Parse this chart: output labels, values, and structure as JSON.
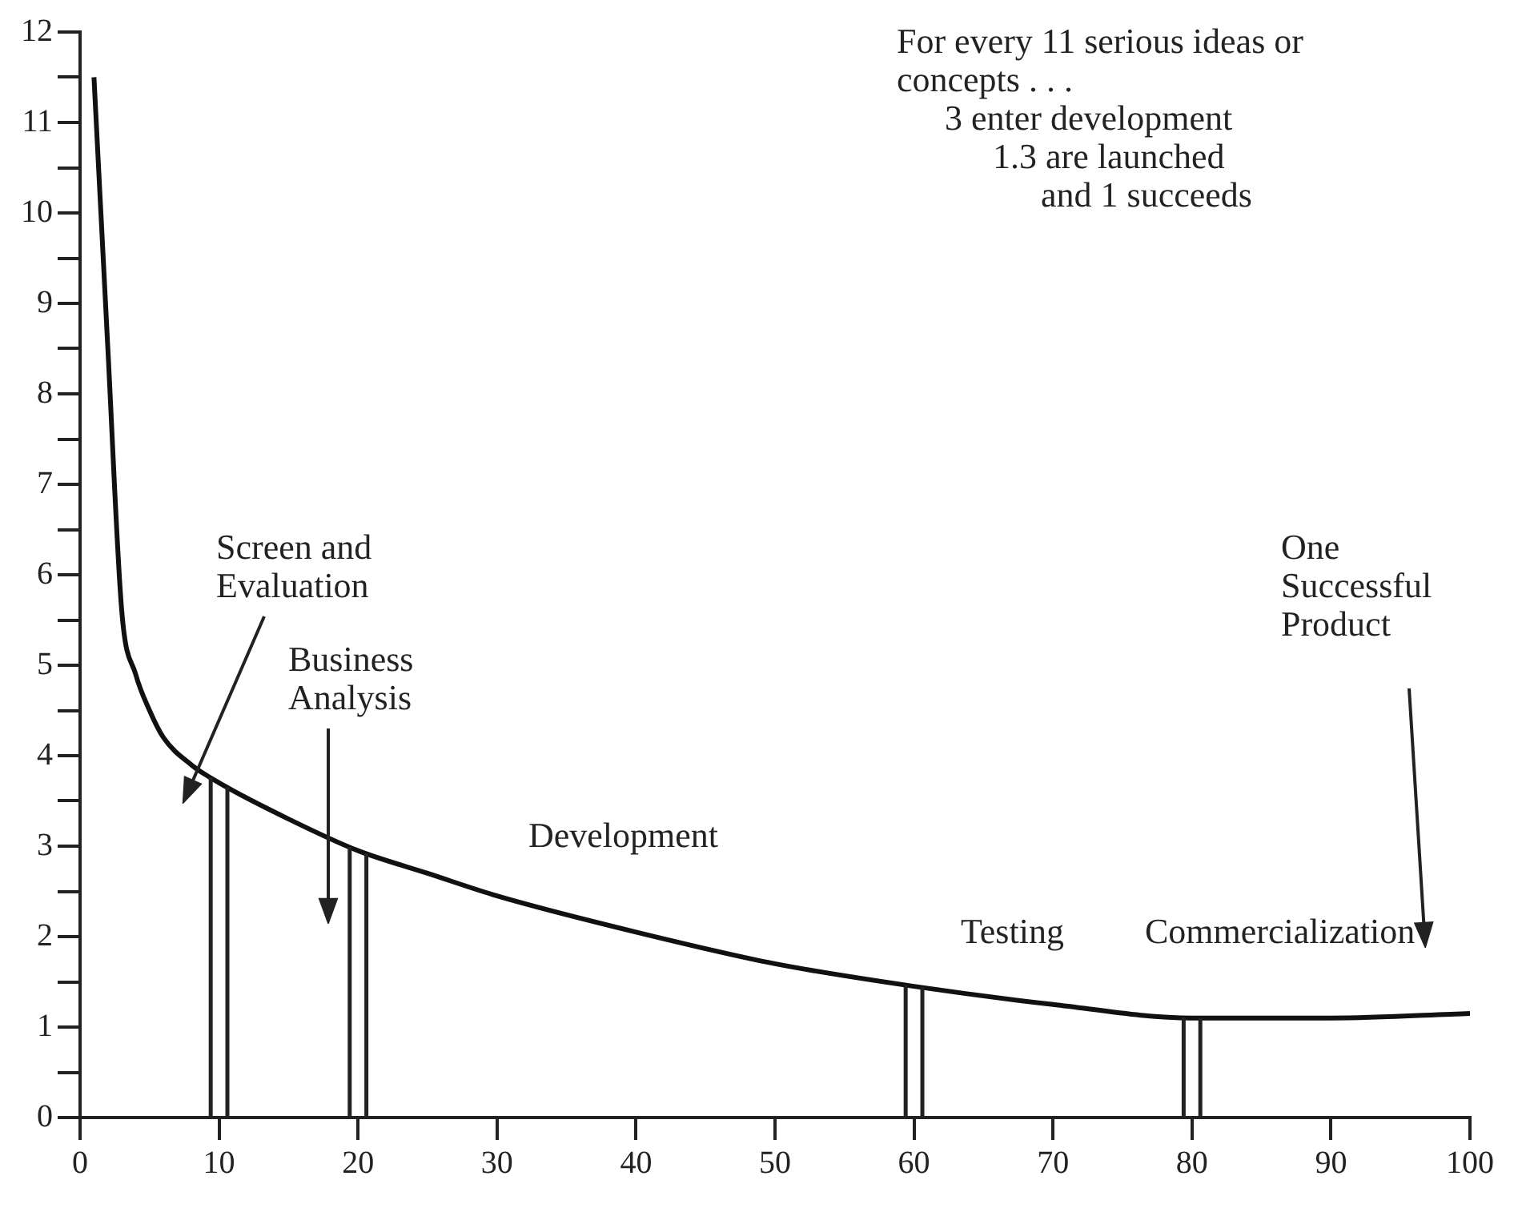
{
  "chart_data": {
    "type": "line",
    "x": [
      1,
      2,
      3,
      4,
      5,
      6,
      8,
      10,
      15,
      20,
      25,
      30,
      40,
      50,
      60,
      70,
      80,
      90,
      100
    ],
    "series": [
      {
        "color": "#111111",
        "values": [
          11.5,
          8.5,
          5.6,
          4.9,
          4.5,
          4.2,
          3.9,
          3.7,
          3.3,
          2.95,
          2.7,
          2.45,
          2.05,
          1.7,
          1.45,
          1.25,
          1.1,
          1.1,
          1.15
        ]
      }
    ],
    "xlim": [
      0,
      100
    ],
    "xticks": [
      0,
      10,
      20,
      30,
      40,
      50,
      60,
      70,
      80,
      90,
      100
    ],
    "ylim": [
      0,
      12
    ],
    "yticks": [
      0,
      {
        "value": 0.5,
        "label": null
      },
      1,
      {
        "value": 1.5,
        "label": null
      },
      2,
      {
        "value": 2.5,
        "label": null
      },
      3,
      {
        "value": 3.5,
        "label": null
      },
      4,
      {
        "value": 4.5,
        "label": null
      },
      5,
      {
        "value": 5.5,
        "label": null
      },
      6,
      {
        "value": 6.5,
        "label": null
      },
      7,
      {
        "value": 7.5,
        "label": null
      },
      8,
      {
        "value": 8.5,
        "label": null
      },
      9,
      {
        "value": 9.5,
        "label": null
      },
      10,
      {
        "value": 10.5,
        "label": null
      },
      11,
      {
        "value": 11.5,
        "label": null
      },
      12
    ],
    "ref_lines": [
      {
        "axis": "x",
        "value": 9.4,
        "label": null
      },
      {
        "axis": "x",
        "value": 10.6,
        "label": null
      },
      {
        "axis": "x",
        "value": 19.4,
        "label": null
      },
      {
        "axis": "x",
        "value": 20.6,
        "label": null
      },
      {
        "axis": "x",
        "value": 59.4,
        "label": null
      },
      {
        "axis": "x",
        "value": 60.6,
        "label": null
      },
      {
        "axis": "x",
        "value": 79.4,
        "label": null
      },
      {
        "axis": "x",
        "value": 80.6,
        "label": null
      }
    ],
    "annotations": [
      "For every 11 serious ideas or",
      "concepts . . .",
      "3 enter development",
      "1.3 are launched",
      "and 1 succeeds",
      "Screen and Evaluation",
      "Business Analysis",
      "Development",
      "Testing",
      "Commercialization",
      "One Successful Product"
    ],
    "grid": false,
    "legend": false,
    "marker": "none",
    "line_style": "solid"
  }
}
